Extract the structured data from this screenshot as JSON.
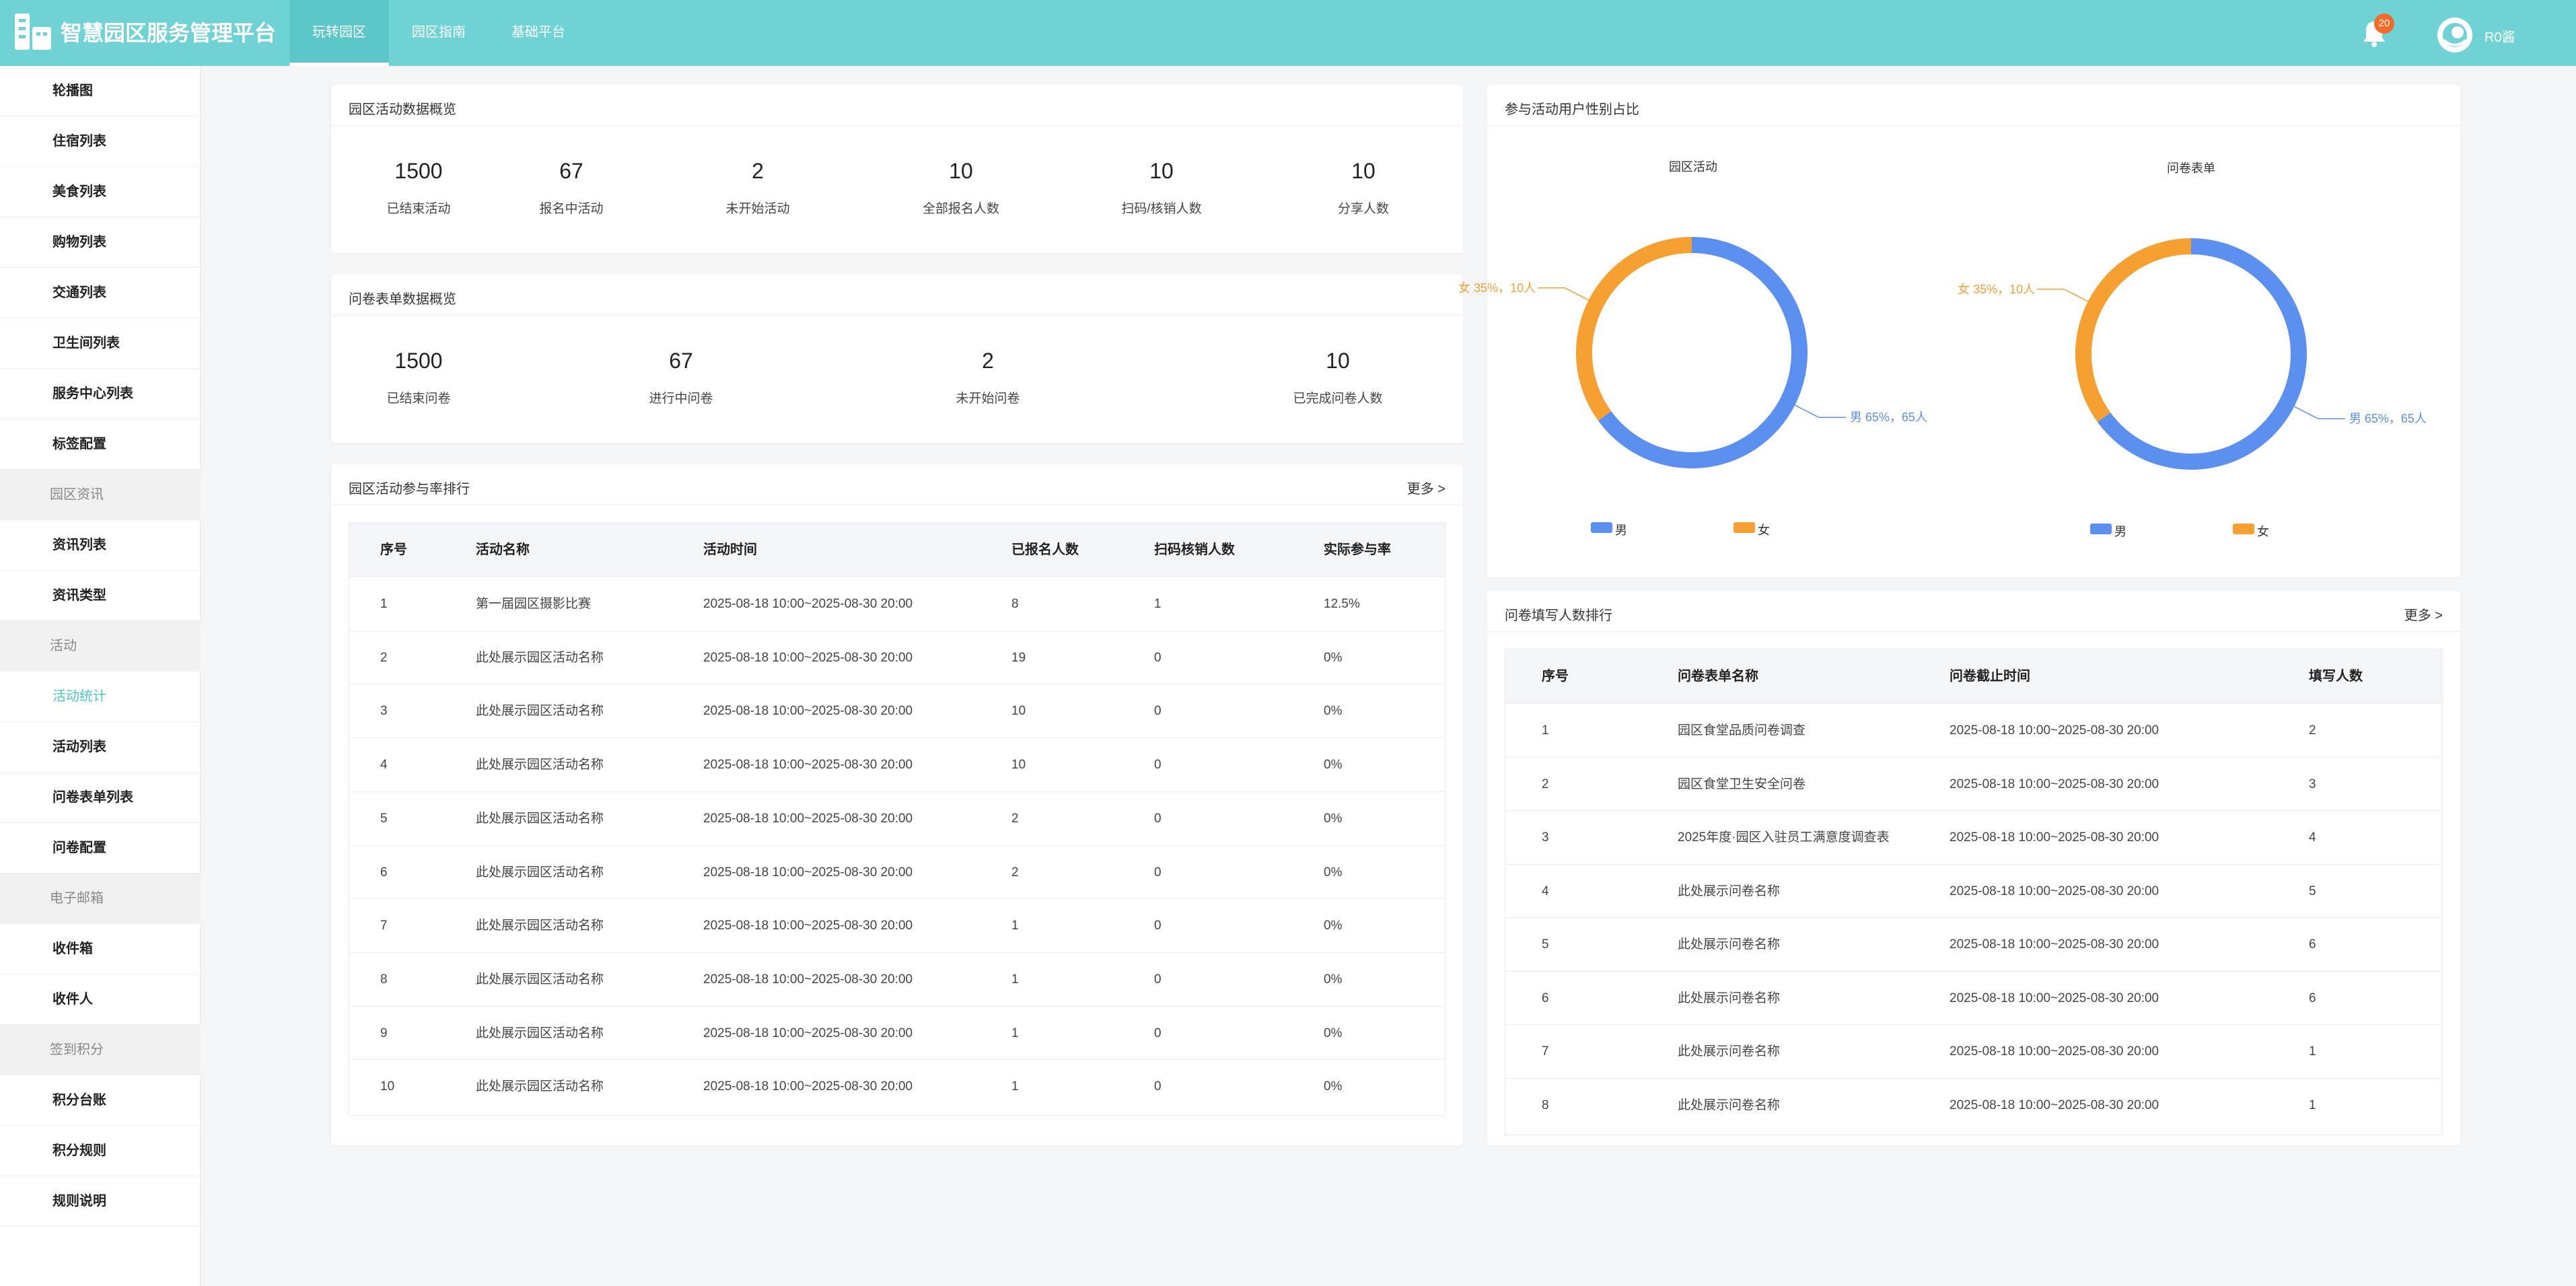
{
  "header": {
    "brand": "智慧园区服务管理平台",
    "nav": [
      "玩转园区",
      "园区指南",
      "基础平台"
    ],
    "badge": "20",
    "user": "R0酱"
  },
  "sidebar": {
    "items": [
      {
        "label": "轮播图",
        "type": "item"
      },
      {
        "label": "住宿列表",
        "type": "item"
      },
      {
        "label": "美食列表",
        "type": "item"
      },
      {
        "label": "购物列表",
        "type": "item"
      },
      {
        "label": "交通列表",
        "type": "item"
      },
      {
        "label": "卫生间列表",
        "type": "item"
      },
      {
        "label": "服务中心列表",
        "type": "item"
      },
      {
        "label": "标签配置",
        "type": "item"
      },
      {
        "label": "园区资讯",
        "type": "group"
      },
      {
        "label": "资讯列表",
        "type": "item"
      },
      {
        "label": "资讯类型",
        "type": "item"
      },
      {
        "label": "活动",
        "type": "group"
      },
      {
        "label": "活动统计",
        "type": "active"
      },
      {
        "label": "活动列表",
        "type": "item"
      },
      {
        "label": "问卷表单列表",
        "type": "item"
      },
      {
        "label": "问卷配置",
        "type": "item"
      },
      {
        "label": "电子邮箱",
        "type": "group"
      },
      {
        "label": "收件箱",
        "type": "item"
      },
      {
        "label": "收件人",
        "type": "item"
      },
      {
        "label": "签到积分",
        "type": "group"
      },
      {
        "label": "积分台账",
        "type": "item"
      },
      {
        "label": "积分规则",
        "type": "item"
      },
      {
        "label": "规则说明",
        "type": "item"
      }
    ]
  },
  "activity_overview": {
    "title": "园区活动数据概览",
    "stats": [
      {
        "value": "1500",
        "label": "已结束活动"
      },
      {
        "value": "67",
        "label": "报名中活动"
      },
      {
        "value": "2",
        "label": "未开始活动"
      },
      {
        "value": "10",
        "label": "全部报名人数"
      },
      {
        "value": "10",
        "label": "扫码/核销人数"
      },
      {
        "value": "10",
        "label": "分享人数"
      }
    ]
  },
  "survey_overview": {
    "title": "问卷表单数据概览",
    "stats": [
      {
        "value": "1500",
        "label": "已结束问卷"
      },
      {
        "value": "67",
        "label": "进行中问卷"
      },
      {
        "value": "2",
        "label": "未开始问卷"
      },
      {
        "value": "10",
        "label": "已完成问卷人数"
      }
    ]
  },
  "activity_ranking": {
    "title": "园区活动参与率排行",
    "more": "更多 >",
    "columns": [
      "序号",
      "活动名称",
      "活动时间",
      "已报名人数",
      "扫码核销人数",
      "实际参与率"
    ],
    "rows": [
      [
        "1",
        "第一届园区摄影比赛",
        "2025-08-18 10:00~2025-08-30 20:00",
        "8",
        "1",
        "12.5%"
      ],
      [
        "2",
        "此处展示园区活动名称",
        "2025-08-18 10:00~2025-08-30 20:00",
        "19",
        "0",
        "0%"
      ],
      [
        "3",
        "此处展示园区活动名称",
        "2025-08-18 10:00~2025-08-30 20:00",
        "10",
        "0",
        "0%"
      ],
      [
        "4",
        "此处展示园区活动名称",
        "2025-08-18 10:00~2025-08-30 20:00",
        "10",
        "0",
        "0%"
      ],
      [
        "5",
        "此处展示园区活动名称",
        "2025-08-18 10:00~2025-08-30 20:00",
        "2",
        "0",
        "0%"
      ],
      [
        "6",
        "此处展示园区活动名称",
        "2025-08-18 10:00~2025-08-30 20:00",
        "2",
        "0",
        "0%"
      ],
      [
        "7",
        "此处展示园区活动名称",
        "2025-08-18 10:00~2025-08-30 20:00",
        "1",
        "0",
        "0%"
      ],
      [
        "8",
        "此处展示园区活动名称",
        "2025-08-18 10:00~2025-08-30 20:00",
        "1",
        "0",
        "0%"
      ],
      [
        "9",
        "此处展示园区活动名称",
        "2025-08-18 10:00~2025-08-30 20:00",
        "1",
        "0",
        "0%"
      ],
      [
        "10",
        "此处展示园区活动名称",
        "2025-08-18 10:00~2025-08-30 20:00",
        "1",
        "0",
        "0%"
      ]
    ]
  },
  "gender": {
    "title": "参与活动用户性别占比",
    "legend_male": "男",
    "legend_female": "女",
    "colors": {
      "male": "#5b8ff0",
      "female": "#f5a030"
    }
  },
  "survey_ranking": {
    "title": "问卷填写人数排行",
    "more": "更多 >",
    "columns": [
      "序号",
      "问卷表单名称",
      "问卷截止时间",
      "填写人数"
    ],
    "rows": [
      [
        "1",
        "园区食堂品质问卷调查",
        "2025-08-18 10:00~2025-08-30 20:00",
        "2"
      ],
      [
        "2",
        "园区食堂卫生安全问卷",
        "2025-08-18 10:00~2025-08-30 20:00",
        "3"
      ],
      [
        "3",
        "2025年度·园区入驻员工满意度调查表",
        "2025-08-18 10:00~2025-08-30 20:00",
        "4"
      ],
      [
        "4",
        "此处展示问卷名称",
        "2025-08-18 10:00~2025-08-30 20:00",
        "5"
      ],
      [
        "5",
        "此处展示问卷名称",
        "2025-08-18 10:00~2025-08-30 20:00",
        "6"
      ],
      [
        "6",
        "此处展示问卷名称",
        "2025-08-18 10:00~2025-08-30 20:00",
        "6"
      ],
      [
        "7",
        "此处展示问卷名称",
        "2025-08-18 10:00~2025-08-30 20:00",
        "1"
      ],
      [
        "8",
        "此处展示问卷名称",
        "2025-08-18 10:00~2025-08-30 20:00",
        "1"
      ]
    ]
  },
  "chart_data": [
    {
      "type": "pie",
      "title": "园区活动",
      "categories": [
        "男",
        "女"
      ],
      "values": [
        65,
        35
      ],
      "counts": [
        65,
        10
      ],
      "labels": [
        "男 65%，65人",
        "女 35%，10人"
      ],
      "legend": "bottom"
    },
    {
      "type": "pie",
      "title": "问卷表单",
      "categories": [
        "男",
        "女"
      ],
      "values": [
        65,
        35
      ],
      "counts": [
        65,
        10
      ],
      "labels": [
        "男 65%，65人",
        "女 35%，10人"
      ],
      "legend": "bottom"
    }
  ]
}
